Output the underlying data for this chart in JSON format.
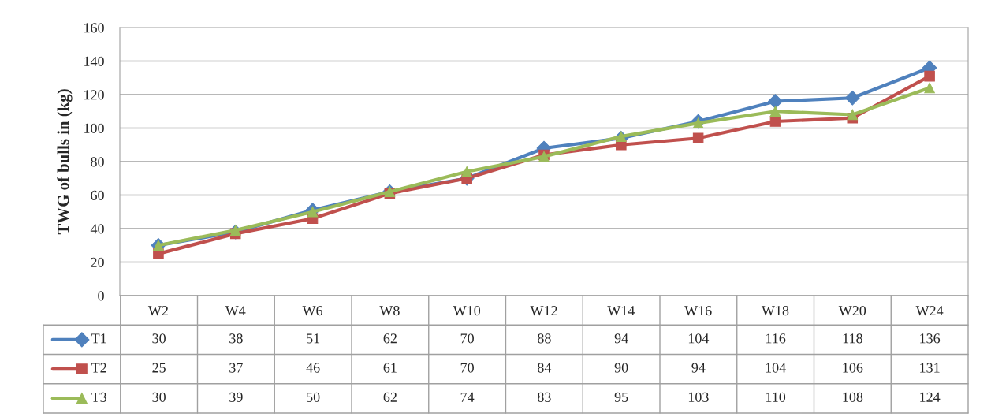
{
  "chart_data": {
    "type": "line",
    "ylabel": "TWG of bulls in (kg)",
    "categories": [
      "W2",
      "W4",
      "W6",
      "W8",
      "W10",
      "W12",
      "W14",
      "W16",
      "W18",
      "W20",
      "W24"
    ],
    "series": [
      {
        "name": "T1",
        "color": "#4f81bd",
        "marker": "diamond",
        "values": [
          30,
          38,
          51,
          62,
          70,
          88,
          94,
          104,
          116,
          118,
          136
        ]
      },
      {
        "name": "T2",
        "color": "#c0504d",
        "marker": "square",
        "values": [
          25,
          37,
          46,
          61,
          70,
          84,
          90,
          94,
          104,
          106,
          131
        ]
      },
      {
        "name": "T3",
        "color": "#9bbb59",
        "marker": "triangle",
        "values": [
          30,
          39,
          50,
          62,
          74,
          83,
          95,
          103,
          110,
          108,
          124
        ]
      }
    ],
    "ylim": [
      0,
      160
    ],
    "yticks": [
      0,
      20,
      40,
      60,
      80,
      100,
      120,
      140,
      160
    ],
    "grid": "y",
    "data_labels": true,
    "legend": "bottom left"
  }
}
